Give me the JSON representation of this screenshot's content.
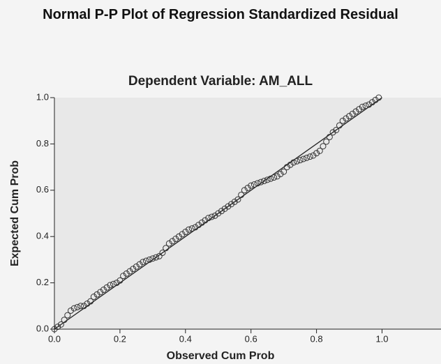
{
  "chart_data": {
    "type": "scatter",
    "title": "Normal P-P Plot of Regression Standardized Residual",
    "subtitle": "Dependent Variable: AM_ALL",
    "x_label": "Observed Cum Prob",
    "y_label": "Expected Cum Prob",
    "x": [
      0.0,
      0.01,
      0.02,
      0.03,
      0.04,
      0.05,
      0.06,
      0.07,
      0.08,
      0.09,
      0.1,
      0.11,
      0.12,
      0.13,
      0.14,
      0.15,
      0.16,
      0.17,
      0.18,
      0.19,
      0.2,
      0.21,
      0.22,
      0.23,
      0.24,
      0.25,
      0.26,
      0.27,
      0.28,
      0.29,
      0.3,
      0.31,
      0.32,
      0.33,
      0.34,
      0.35,
      0.36,
      0.37,
      0.38,
      0.39,
      0.4,
      0.41,
      0.42,
      0.43,
      0.44,
      0.45,
      0.46,
      0.47,
      0.48,
      0.49,
      0.5,
      0.51,
      0.52,
      0.53,
      0.54,
      0.55,
      0.56,
      0.57,
      0.58,
      0.59,
      0.6,
      0.61,
      0.62,
      0.63,
      0.64,
      0.65,
      0.66,
      0.67,
      0.68,
      0.69,
      0.7,
      0.71,
      0.72,
      0.73,
      0.74,
      0.75,
      0.76,
      0.77,
      0.78,
      0.79,
      0.8,
      0.81,
      0.82,
      0.83,
      0.84,
      0.85,
      0.86,
      0.87,
      0.88,
      0.89,
      0.9,
      0.91,
      0.92,
      0.93,
      0.94,
      0.95,
      0.96,
      0.97,
      0.98,
      0.99
    ],
    "series": [
      {
        "color": "#333333",
        "values": [
          0.0,
          0.01,
          0.02,
          0.04,
          0.06,
          0.08,
          0.09,
          0.095,
          0.1,
          0.1,
          0.11,
          0.12,
          0.14,
          0.15,
          0.16,
          0.17,
          0.18,
          0.19,
          0.195,
          0.2,
          0.21,
          0.23,
          0.24,
          0.25,
          0.26,
          0.27,
          0.28,
          0.29,
          0.295,
          0.3,
          0.305,
          0.31,
          0.315,
          0.33,
          0.35,
          0.37,
          0.38,
          0.39,
          0.4,
          0.41,
          0.42,
          0.43,
          0.435,
          0.44,
          0.45,
          0.46,
          0.47,
          0.48,
          0.485,
          0.49,
          0.5,
          0.51,
          0.52,
          0.53,
          0.54,
          0.55,
          0.56,
          0.58,
          0.6,
          0.61,
          0.62,
          0.625,
          0.63,
          0.635,
          0.64,
          0.645,
          0.65,
          0.655,
          0.66,
          0.67,
          0.68,
          0.7,
          0.71,
          0.72,
          0.725,
          0.73,
          0.735,
          0.74,
          0.745,
          0.75,
          0.76,
          0.77,
          0.79,
          0.81,
          0.83,
          0.85,
          0.86,
          0.88,
          0.9,
          0.91,
          0.92,
          0.93,
          0.94,
          0.95,
          0.96,
          0.965,
          0.97,
          0.98,
          0.99,
          1.0
        ]
      }
    ],
    "xlim": [
      0,
      1.18
    ],
    "ylim": [
      0,
      1
    ],
    "xticks": [
      {
        "value": 0,
        "label": "0.0"
      },
      0.2,
      0.4,
      0.6,
      0.8,
      {
        "value": 1,
        "label": "1.0"
      }
    ],
    "yticks": [
      {
        "value": 0,
        "label": "0.0"
      },
      0.2,
      0.4,
      0.6,
      0.8,
      {
        "value": 1,
        "label": "1.0"
      }
    ],
    "grid": false
  }
}
